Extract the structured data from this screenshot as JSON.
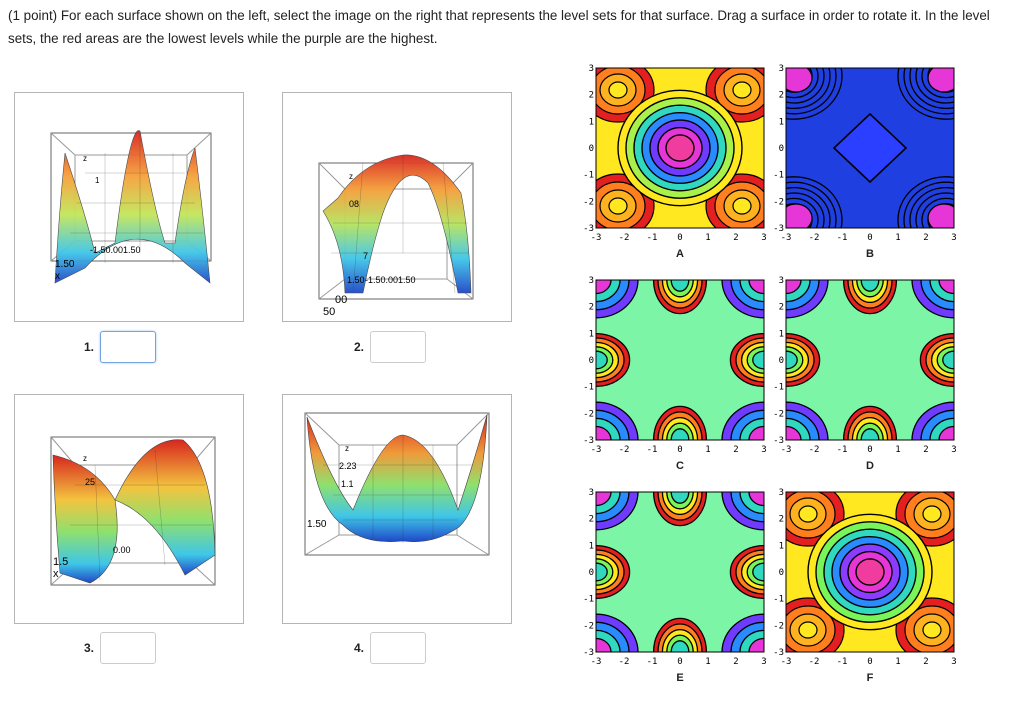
{
  "question": {
    "points": "(1 point)",
    "text": "For each surface shown on the left, select the image on the right that represents the level sets for that surface. Drag a surface in order to rotate it. In the level sets, the red areas are the lowest levels while the purple are the highest."
  },
  "surfaces": [
    {
      "number": "1.",
      "value": "",
      "focused": true,
      "axis_text": [
        "z",
        "1",
        "-1.50.001.50",
        "1.50",
        "x"
      ]
    },
    {
      "number": "2.",
      "value": "",
      "focused": false,
      "axis_text": [
        "z",
        "08",
        "7",
        "-1.50.001.50",
        "1.50",
        "00",
        "50"
      ]
    },
    {
      "number": "3.",
      "value": "",
      "focused": false,
      "axis_text": [
        "z",
        "25",
        "0.00",
        "1.5",
        "x"
      ]
    },
    {
      "number": "4.",
      "value": "",
      "focused": false,
      "axis_text": [
        "z",
        "2.23",
        "1.1",
        "1.50"
      ]
    }
  ],
  "contours": [
    {
      "label": "A",
      "pattern": "center_bowl"
    },
    {
      "label": "B",
      "pattern": "center_peak_diamond"
    },
    {
      "label": "C",
      "pattern": "star"
    },
    {
      "label": "D",
      "pattern": "star"
    },
    {
      "label": "E",
      "pattern": "star"
    },
    {
      "label": "F",
      "pattern": "center_rings"
    }
  ],
  "axis_ticks": [
    "-3",
    "-2",
    "-1",
    "0",
    "1",
    "2",
    "3"
  ],
  "y_axis_ticks": [
    "3",
    "2",
    "1",
    "0",
    "-1",
    "-2",
    "-3"
  ],
  "level_colors": [
    "#e41f1f",
    "#ff7f1f",
    "#ffe81f",
    "#79f55a",
    "#30d8c0",
    "#2a8bff",
    "#6f3cff",
    "#e636d8",
    "#f03c9e"
  ]
}
